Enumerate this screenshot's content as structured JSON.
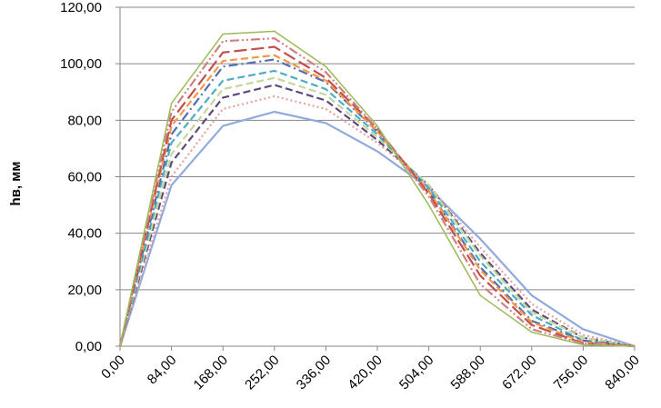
{
  "chart_data": {
    "type": "line",
    "title": "",
    "xlabel": "",
    "ylabel": "hв, мм",
    "x": [
      0,
      84,
      168,
      252,
      336,
      420,
      504,
      588,
      672,
      756,
      840
    ],
    "x_tick_labels": [
      "0,00",
      "84,00",
      "168,00",
      "252,00",
      "336,00",
      "420,00",
      "504,00",
      "588,00",
      "672,00",
      "756,00",
      "840,00"
    ],
    "y_ticks": [
      0,
      20,
      40,
      60,
      80,
      100,
      120
    ],
    "y_tick_labels": [
      "0,00",
      "20,00",
      "40,00",
      "60,00",
      "80,00",
      "100,00",
      "120,00"
    ],
    "ylim": [
      0,
      120
    ],
    "grid": "horizontal",
    "legend": "none",
    "series": [
      {
        "color": "#8faadc",
        "dash": "solid",
        "values": [
          0,
          57,
          78,
          83,
          79,
          69,
          56,
          38,
          18,
          6,
          0
        ]
      },
      {
        "color": "#e6a0a0",
        "dash": "dot",
        "values": [
          0,
          60,
          84,
          88.5,
          84,
          72,
          57,
          35,
          15,
          4,
          0
        ]
      },
      {
        "color": "#60497a",
        "dash": "dash",
        "values": [
          0,
          65,
          88,
          92.5,
          87,
          73,
          57,
          33,
          13,
          3,
          0
        ]
      },
      {
        "color": "#c3d69b",
        "dash": "dash",
        "values": [
          0,
          68,
          91,
          95,
          89,
          74,
          57,
          32,
          12,
          3,
          0
        ]
      },
      {
        "color": "#4bacc6",
        "dash": "dash",
        "values": [
          0,
          72,
          94,
          97.5,
          91,
          75,
          56,
          30,
          11,
          2,
          0
        ]
      },
      {
        "color": "#4f6fb0",
        "dash": "dashdot",
        "values": [
          0,
          75,
          99,
          101.5,
          93.5,
          76,
          55,
          28,
          9,
          2,
          0
        ]
      },
      {
        "color": "#f79646",
        "dash": "dash",
        "values": [
          0,
          78,
          101,
          103,
          94,
          76,
          55,
          27,
          8.5,
          1.5,
          0
        ]
      },
      {
        "color": "#c0504d",
        "dash": "longdash",
        "values": [
          0,
          80,
          104,
          106,
          95,
          77,
          54,
          25,
          7.5,
          1,
          0
        ]
      },
      {
        "color": "#d08080",
        "dash": "dashdotdot",
        "values": [
          0,
          83,
          108,
          109,
          97,
          77,
          53,
          22,
          6,
          1,
          0
        ]
      },
      {
        "color": "#9bbb59",
        "dash": "solid",
        "values": [
          0,
          86,
          110.5,
          111.5,
          99,
          78,
          50,
          18,
          5,
          0.5,
          0
        ]
      }
    ]
  }
}
